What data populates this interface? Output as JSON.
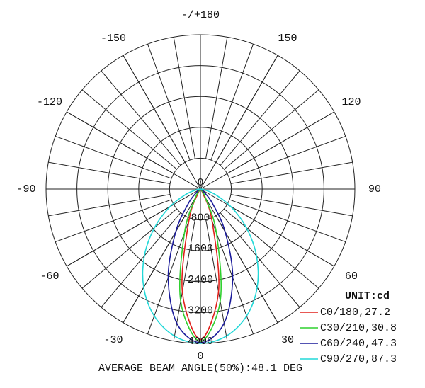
{
  "chart_data": {
    "type": "polar",
    "x": [
      -90,
      -80,
      -70,
      -60,
      -50,
      -40,
      -30,
      -20,
      -10,
      0,
      10,
      20,
      30,
      40,
      50,
      60,
      70,
      80,
      90
    ],
    "series": [
      {
        "name": "C0/180,27.2",
        "color": "#e0201b",
        "values": [
          0,
          0,
          0,
          0,
          0,
          7,
          124,
          880,
          2700,
          3900,
          2700,
          880,
          124,
          7,
          0,
          0,
          0,
          0,
          0
        ]
      },
      {
        "name": "C30/210,30.8",
        "color": "#2fd02f",
        "values": [
          0,
          0,
          0,
          0,
          0,
          24,
          257,
          1210,
          2950,
          3950,
          2950,
          1210,
          257,
          24,
          0,
          0,
          0,
          0,
          0
        ]
      },
      {
        "name": "C60/240,47.3",
        "color": "#1a1a9a",
        "values": [
          0,
          0,
          0,
          17,
          120,
          485,
          1280,
          2440,
          3530,
          3980,
          3530,
          2440,
          1280,
          485,
          120,
          17,
          0,
          0,
          0
        ]
      },
      {
        "name": "C90/270,87.3",
        "color": "#22d8d8",
        "values": [
          0,
          95,
          400,
          910,
          1550,
          2260,
          2940,
          3500,
          3870,
          4000,
          3870,
          3500,
          2940,
          2260,
          1550,
          910,
          400,
          95,
          0
        ]
      }
    ],
    "rlim": [
      0,
      4000
    ],
    "rticks": [
      0,
      800,
      1600,
      2400,
      3200,
      4000
    ],
    "angleticks": [
      -150,
      -120,
      -90,
      -60,
      -30,
      0,
      30,
      60,
      90,
      120,
      150,
      {
        "value": 180,
        "label": "-/+180"
      }
    ],
    "unit_label": "UNIT:cd",
    "footnote": "AVERAGE BEAM ANGLE(50%):48.1 DEG"
  }
}
